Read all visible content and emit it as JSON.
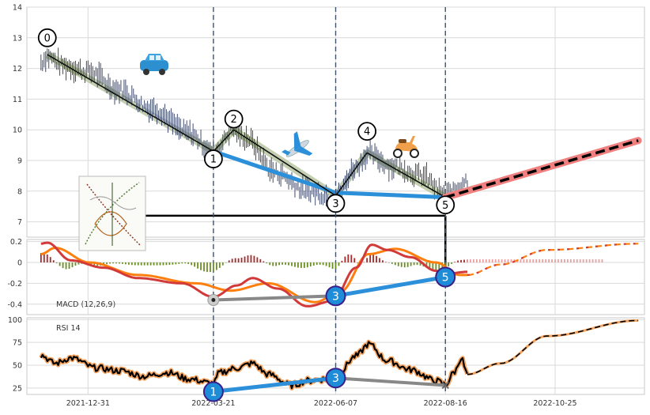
{
  "chart_data": {
    "type": "line",
    "x_tick_labels": [
      "2021-12-31",
      "2022-03-21",
      "2022-06-07",
      "2022-08-16",
      "2022-10-25"
    ],
    "x_tick_dates": [
      "2021-12-31",
      "2022-03-21",
      "2022-06-07",
      "2022-08-16",
      "2022-10-25"
    ],
    "x_range": [
      "2021-11-22",
      "2022-12-21"
    ],
    "grid": true,
    "vertical_markers": [
      "2022-03-21",
      "2022-06-07",
      "2022-08-16"
    ],
    "panels": {
      "price": {
        "ylim": [
          6.5,
          14
        ],
        "y_ticks": [
          7,
          8,
          9,
          10,
          11,
          12,
          13,
          14
        ],
        "price_anchors": [
          {
            "date": "2021-12-01",
            "value": 12.2
          },
          {
            "date": "2021-12-05",
            "value": 12.4
          },
          {
            "date": "2021-12-15",
            "value": 12.1
          },
          {
            "date": "2021-12-31",
            "value": 11.9
          },
          {
            "date": "2022-01-20",
            "value": 11.3
          },
          {
            "date": "2022-02-10",
            "value": 10.7
          },
          {
            "date": "2022-03-05",
            "value": 9.9
          },
          {
            "date": "2022-03-21",
            "value": 9.3
          },
          {
            "date": "2022-04-03",
            "value": 10.0
          },
          {
            "date": "2022-04-10",
            "value": 9.75
          },
          {
            "date": "2022-04-30",
            "value": 8.6
          },
          {
            "date": "2022-05-20",
            "value": 8.0
          },
          {
            "date": "2022-06-07",
            "value": 7.8
          },
          {
            "date": "2022-06-20",
            "value": 8.8
          },
          {
            "date": "2022-06-27",
            "value": 9.2
          },
          {
            "date": "2022-07-15",
            "value": 8.8
          },
          {
            "date": "2022-08-01",
            "value": 8.5
          },
          {
            "date": "2022-08-16",
            "value": 7.85
          },
          {
            "date": "2022-08-30",
            "value": 8.35
          }
        ],
        "zigzag": [
          {
            "label": "0",
            "date": "2021-12-05",
            "value": 12.45
          },
          {
            "label": "1",
            "date": "2022-03-21",
            "value": 9.3
          },
          {
            "label": "2",
            "date": "2022-04-03",
            "value": 10.0
          },
          {
            "label": "3",
            "date": "2022-06-07",
            "value": 7.85
          },
          {
            "label": "4",
            "date": "2022-06-27",
            "value": 9.25
          },
          {
            "label": "5",
            "date": "2022-08-16",
            "value": 7.8
          }
        ],
        "wave_labels": [
          {
            "label": "0",
            "date": "2021-12-05",
            "value": 13.0
          },
          {
            "label": "1",
            "date": "2022-03-21",
            "value": 9.05
          },
          {
            "label": "2",
            "date": "2022-04-03",
            "value": 10.35
          },
          {
            "label": "3",
            "date": "2022-06-07",
            "value": 7.6
          },
          {
            "label": "4",
            "date": "2022-06-27",
            "value": 9.95
          },
          {
            "label": "5",
            "date": "2022-08-16",
            "value": 7.55
          }
        ],
        "blue_divergence": [
          {
            "date": "2022-03-21",
            "value": 9.3
          },
          {
            "date": "2022-06-07",
            "value": 7.95
          },
          {
            "date": "2022-08-16",
            "value": 7.8
          }
        ],
        "projection": [
          {
            "date": "2022-08-16",
            "value": 7.8
          },
          {
            "date": "2022-12-17",
            "value": 9.65
          }
        ],
        "support_level": {
          "value": 7.2,
          "from": "2021-12-31",
          "to": "2022-08-16"
        }
      },
      "macd": {
        "label": "MACD (12,26,9)",
        "ylim": [
          -0.5,
          0.22
        ],
        "y_ticks": [
          -0.4,
          -0.2,
          0.0,
          0.2
        ],
        "macd_anchors": [
          {
            "date": "2021-12-01",
            "value": 0.18
          },
          {
            "date": "2021-12-05",
            "value": 0.19
          },
          {
            "date": "2021-12-20",
            "value": 0.02
          },
          {
            "date": "2022-01-10",
            "value": -0.05
          },
          {
            "date": "2022-02-01",
            "value": -0.15
          },
          {
            "date": "2022-03-01",
            "value": -0.2
          },
          {
            "date": "2022-03-21",
            "value": -0.33
          },
          {
            "date": "2022-04-05",
            "value": -0.22
          },
          {
            "date": "2022-04-15",
            "value": -0.15
          },
          {
            "date": "2022-05-01",
            "value": -0.25
          },
          {
            "date": "2022-05-20",
            "value": -0.42
          },
          {
            "date": "2022-06-05",
            "value": -0.37
          },
          {
            "date": "2022-06-20",
            "value": -0.05
          },
          {
            "date": "2022-06-30",
            "value": 0.17
          },
          {
            "date": "2022-07-10",
            "value": 0.12
          },
          {
            "date": "2022-07-25",
            "value": 0.05
          },
          {
            "date": "2022-08-10",
            "value": -0.08
          },
          {
            "date": "2022-08-16",
            "value": -0.11
          },
          {
            "date": "2022-08-30",
            "value": -0.09
          }
        ],
        "signal_anchors": [
          {
            "date": "2021-12-01",
            "value": 0.08
          },
          {
            "date": "2021-12-10",
            "value": 0.14
          },
          {
            "date": "2022-01-01",
            "value": 0.0
          },
          {
            "date": "2022-02-01",
            "value": -0.12
          },
          {
            "date": "2022-03-10",
            "value": -0.2
          },
          {
            "date": "2022-04-01",
            "value": -0.27
          },
          {
            "date": "2022-04-25",
            "value": -0.2
          },
          {
            "date": "2022-05-25",
            "value": -0.38
          },
          {
            "date": "2022-06-10",
            "value": -0.28
          },
          {
            "date": "2022-06-28",
            "value": 0.08
          },
          {
            "date": "2022-07-15",
            "value": 0.13
          },
          {
            "date": "2022-08-10",
            "value": 0.0
          },
          {
            "date": "2022-08-25",
            "value": -0.12
          },
          {
            "date": "2022-08-30",
            "value": -0.12
          }
        ],
        "forecast_anchors": [
          {
            "date": "2022-08-30",
            "value": -0.12
          },
          {
            "date": "2022-09-20",
            "value": -0.02
          },
          {
            "date": "2022-10-20",
            "value": 0.12
          },
          {
            "date": "2022-12-17",
            "value": 0.18
          }
        ],
        "forecast_histogram_level": 0.03,
        "gray_divergence": [
          {
            "date": "2022-03-21",
            "value": -0.36
          },
          {
            "date": "2022-06-07",
            "value": -0.32
          }
        ],
        "blue_divergence": [
          {
            "date": "2022-06-07",
            "value": -0.32
          },
          {
            "date": "2022-08-16",
            "value": -0.14
          }
        ],
        "markers": [
          {
            "label": "3",
            "date": "2022-06-07",
            "value": -0.32
          },
          {
            "label": "5",
            "date": "2022-08-16",
            "value": -0.14
          }
        ]
      },
      "rsi": {
        "label": "RSI 14",
        "ylim": [
          18,
          102
        ],
        "y_ticks": [
          25,
          50,
          75,
          100
        ],
        "rsi_anchors": [
          {
            "date": "2021-12-01",
            "value": 61
          },
          {
            "date": "2021-12-10",
            "value": 52
          },
          {
            "date": "2021-12-20",
            "value": 58
          },
          {
            "date": "2022-01-05",
            "value": 47
          },
          {
            "date": "2022-01-20",
            "value": 44
          },
          {
            "date": "2022-02-05",
            "value": 38
          },
          {
            "date": "2022-02-20",
            "value": 42
          },
          {
            "date": "2022-03-05",
            "value": 35
          },
          {
            "date": "2022-03-21",
            "value": 30
          },
          {
            "date": "2022-03-25",
            "value": 42
          },
          {
            "date": "2022-04-05",
            "value": 47
          },
          {
            "date": "2022-04-15",
            "value": 52
          },
          {
            "date": "2022-04-25",
            "value": 40
          },
          {
            "date": "2022-05-10",
            "value": 28
          },
          {
            "date": "2022-05-20",
            "value": 33
          },
          {
            "date": "2022-06-01",
            "value": 35
          },
          {
            "date": "2022-06-07",
            "value": 37
          },
          {
            "date": "2022-06-20",
            "value": 60
          },
          {
            "date": "2022-06-28",
            "value": 73
          },
          {
            "date": "2022-07-10",
            "value": 55
          },
          {
            "date": "2022-07-25",
            "value": 45
          },
          {
            "date": "2022-08-10",
            "value": 33
          },
          {
            "date": "2022-08-16",
            "value": 29
          },
          {
            "date": "2022-08-22",
            "value": 43
          },
          {
            "date": "2022-08-26",
            "value": 58
          },
          {
            "date": "2022-08-30",
            "value": 40
          }
        ],
        "forecast_anchors": [
          {
            "date": "2022-08-30",
            "value": 40
          },
          {
            "date": "2022-09-20",
            "value": 52
          },
          {
            "date": "2022-10-20",
            "value": 82
          },
          {
            "date": "2022-12-17",
            "value": 99
          }
        ],
        "blue_divergence": [
          {
            "date": "2022-03-21",
            "value": 21
          },
          {
            "date": "2022-06-07",
            "value": 36
          }
        ],
        "gray_divergence": [
          {
            "date": "2022-06-07",
            "value": 36
          },
          {
            "date": "2022-08-16",
            "value": 28
          }
        ],
        "markers": [
          {
            "label": "1",
            "date": "2022-03-21",
            "value": 21
          },
          {
            "label": "3",
            "date": "2022-06-07",
            "value": 36
          }
        ]
      }
    }
  },
  "colors": {
    "grid": "#d9d9d9",
    "frame": "#c8c8c8",
    "price": "#2e3a5c",
    "zigzag": "#111111",
    "zigzag_band": "#b9c7a2",
    "blue": "#2b90d9",
    "projection": "#f08080",
    "dashed_markers": "#3d5370",
    "macd_line": "#d23a3a",
    "signal_line": "#ff7f0e",
    "hist_positive": "#a52a2a",
    "hist_negative": "#6b8e23",
    "marker_fill": "#1e8cd6",
    "marker_stroke": "#3a1f8a",
    "gray_line": "#888888",
    "rsi_line": "#000000",
    "rsi_halo": "#f4a460"
  },
  "icons": [
    "car-icon",
    "airplane-icon",
    "scooter-icon",
    "sketch-icon"
  ]
}
